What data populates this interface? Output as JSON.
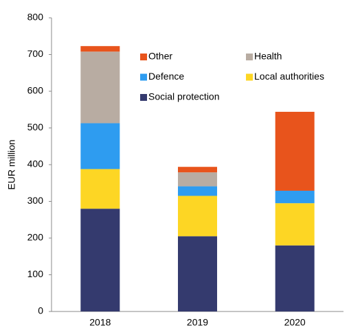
{
  "chart_data": {
    "type": "stacked_bar",
    "y_label": "EUR million",
    "categories": [
      "2018",
      "2019",
      "2020"
    ],
    "series": [
      {
        "name": "Social protection",
        "color": "#343a6e",
        "values": [
          280,
          205,
          180
        ]
      },
      {
        "name": "Local authorities",
        "color": "#fdd624",
        "values": [
          108,
          110,
          115
        ]
      },
      {
        "name": "Defence",
        "color": "#2e9cf0",
        "values": [
          125,
          26,
          34
        ]
      },
      {
        "name": "Health",
        "color": "#b8aca2",
        "values": [
          195,
          38,
          0
        ]
      },
      {
        "name": "Other",
        "color": "#e8541c",
        "values": [
          15,
          15,
          215
        ]
      }
    ],
    "ylim": [
      0,
      800
    ],
    "yticks": [
      0,
      100,
      200,
      300,
      400,
      500,
      600,
      700,
      800
    ]
  }
}
